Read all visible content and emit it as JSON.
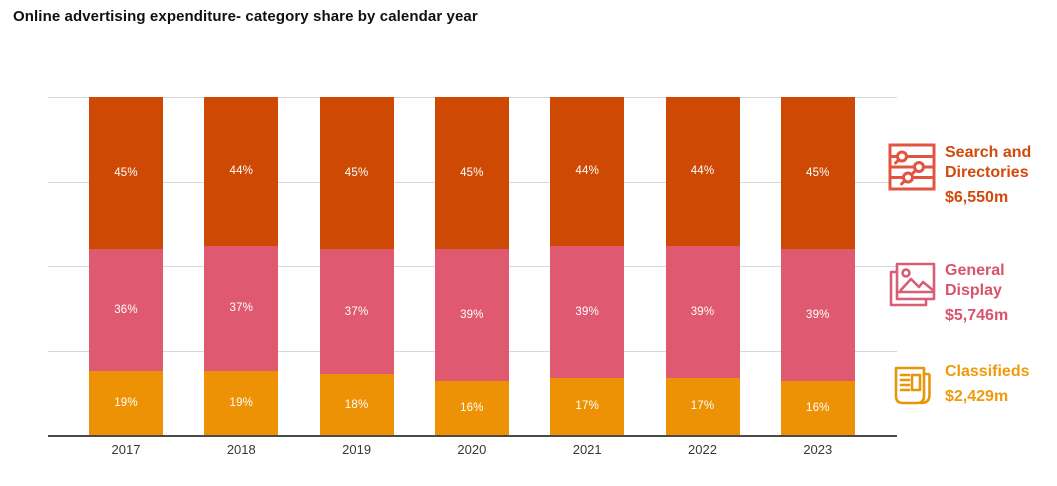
{
  "page": {
    "title": "Online advertising expenditure- category share by calendar year"
  },
  "chart_data": {
    "type": "bar",
    "stacked": true,
    "title": "Online advertising expenditure- category share by calendar year",
    "value_unit": "%",
    "categories": [
      "2017",
      "2018",
      "2019",
      "2020",
      "2021",
      "2022",
      "2023"
    ],
    "series": [
      {
        "name": "Search and Directories",
        "total": "$6,550m",
        "color": "#CE4A04",
        "values": [
          45,
          44,
          45,
          45,
          44,
          44,
          45
        ]
      },
      {
        "name": "General Display",
        "total": "$5,746m",
        "color": "#DF5A71",
        "values": [
          36,
          37,
          37,
          39,
          39,
          39,
          39
        ]
      },
      {
        "name": "Classifieds",
        "total": "$2,429m",
        "color": "#EE9205",
        "values": [
          19,
          19,
          18,
          16,
          17,
          17,
          16
        ]
      }
    ],
    "ylim": [
      0,
      100
    ],
    "gridlines_pct": [
      0,
      25,
      50,
      75,
      100
    ],
    "grid_color": "#d9d9d9",
    "axis_color": "#4a4a4a",
    "value_label_format": "{v}%",
    "legend_position": "right"
  },
  "legend": {
    "items": [
      {
        "icon": "search-sliders-icon",
        "icon_color": "#E2543F",
        "color": "#D2490A",
        "name_lines": [
          "Search and",
          "Directories"
        ],
        "value": "$6,550m"
      },
      {
        "icon": "image-stack-icon",
        "icon_color": "#D75E74",
        "color": "#D9536B",
        "name_lines": [
          "General",
          "Display"
        ],
        "value": "$5,746m"
      },
      {
        "icon": "newspaper-icon",
        "icon_color": "#E8960C",
        "color": "#F09A0C",
        "name_lines": [
          "Classifieds"
        ],
        "value": "$2,429m"
      }
    ]
  }
}
